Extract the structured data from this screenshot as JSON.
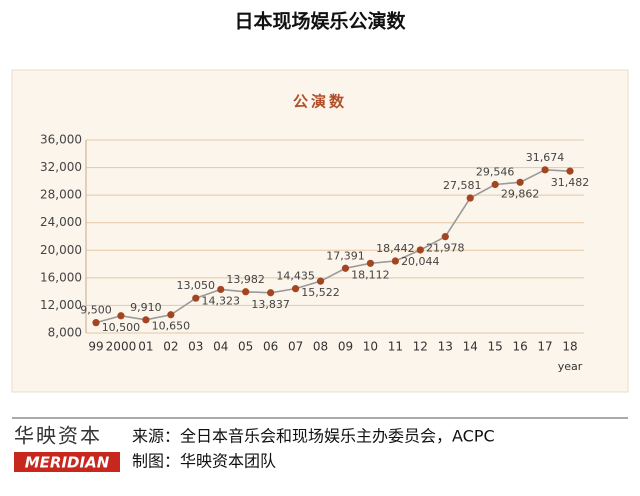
{
  "page_title": "日本现场娱乐公演数",
  "chart_data": {
    "type": "line",
    "title": "公演数",
    "x_label": "year",
    "categories": [
      "99",
      "2000",
      "01",
      "02",
      "03",
      "04",
      "05",
      "06",
      "07",
      "08",
      "09",
      "10",
      "11",
      "12",
      "13",
      "14",
      "15",
      "16",
      "17",
      "18"
    ],
    "series": [
      {
        "name": "公演数",
        "color": "#a4451f",
        "values": [
          9500,
          10500,
          9910,
          10650,
          13050,
          14323,
          13982,
          13837,
          14435,
          15522,
          17391,
          18112,
          18442,
          20044,
          21978,
          27581,
          29546,
          29862,
          31674,
          31482
        ],
        "value_labels": [
          "9,500",
          "10,500",
          "9,910",
          "10,650",
          "13,050",
          "14,323",
          "13,982",
          "13,837",
          "14,435",
          "15,522",
          "17,391",
          "18,112",
          "18,442",
          "20,044",
          "21,978",
          "27,581",
          "29,546",
          "29,862",
          "31,674",
          "31,482"
        ]
      }
    ],
    "ylim": [
      8000,
      36000
    ],
    "yticks": [
      {
        "value": 8000,
        "label": "8,000"
      },
      {
        "value": 12000,
        "label": "12,000"
      },
      {
        "value": 16000,
        "label": "16,000"
      },
      {
        "value": 20000,
        "label": "20,000"
      },
      {
        "value": 24000,
        "label": "24,000"
      },
      {
        "value": 28000,
        "label": "28,000"
      },
      {
        "value": 32000,
        "label": "32,000"
      },
      {
        "value": 36000,
        "label": "36,000"
      }
    ],
    "grid": true
  },
  "footer": {
    "brand": "华映资本",
    "logo": "MERIDIAN",
    "source": "来源：全日本音乐会和现场娱乐主办委员会，ACPC",
    "credit": "制图：华映资本团队"
  }
}
